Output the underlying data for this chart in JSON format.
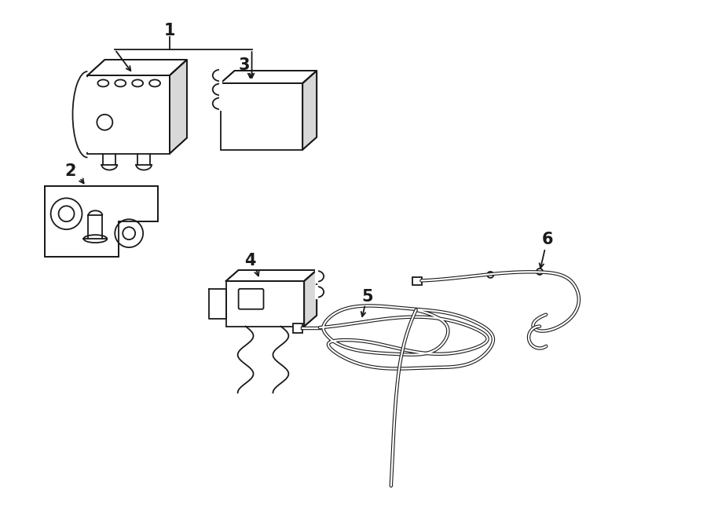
{
  "bg_color": "#ffffff",
  "line_color": "#1a1a1a",
  "lw": 1.3,
  "lw_tube": 3.2,
  "lw_tube_inner": 1.6,
  "label_fontsize": 13,
  "figsize": [
    9.0,
    6.61
  ],
  "dpi": 100,
  "xlim": [
    0,
    900
  ],
  "ylim": [
    0,
    661
  ]
}
